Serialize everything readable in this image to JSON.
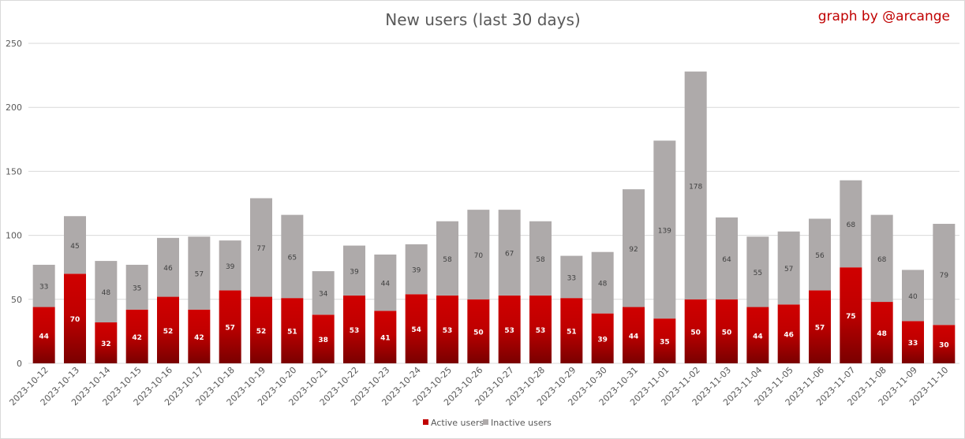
{
  "chart_data": {
    "type": "bar",
    "stacked": true,
    "title": "New users (last 30 days)",
    "watermark": "graph by @arcange",
    "xlabel": "",
    "ylabel": "",
    "ylim": [
      0,
      250
    ],
    "yticks": [
      0,
      50,
      100,
      150,
      200,
      250
    ],
    "grid": true,
    "legend_position": "bottom",
    "categories": [
      "2023-10-12",
      "2023-10-13",
      "2023-10-14",
      "2023-10-15",
      "2023-10-16",
      "2023-10-17",
      "2023-10-18",
      "2023-10-19",
      "2023-10-20",
      "2023-10-21",
      "2023-10-22",
      "2023-10-23",
      "2023-10-24",
      "2023-10-25",
      "2023-10-26",
      "2023-10-27",
      "2023-10-28",
      "2023-10-29",
      "2023-10-30",
      "2023-10-31",
      "2023-11-01",
      "2023-11-02",
      "2023-11-03",
      "2023-11-04",
      "2023-11-05",
      "2023-11-06",
      "2023-11-07",
      "2023-11-08",
      "2023-11-09",
      "2023-11-10"
    ],
    "series": [
      {
        "name": "Active users",
        "color": "#c00000",
        "values": [
          44,
          70,
          32,
          42,
          52,
          42,
          57,
          52,
          51,
          38,
          53,
          41,
          54,
          53,
          50,
          53,
          53,
          51,
          39,
          44,
          35,
          50,
          50,
          44,
          46,
          57,
          75,
          48,
          33,
          30
        ]
      },
      {
        "name": "Inactive users",
        "color": "#aeaaaa",
        "values": [
          33,
          45,
          48,
          35,
          46,
          57,
          39,
          77,
          65,
          34,
          39,
          44,
          39,
          58,
          70,
          67,
          58,
          33,
          48,
          92,
          139,
          178,
          64,
          55,
          57,
          56,
          68,
          68,
          40,
          79
        ]
      }
    ]
  }
}
